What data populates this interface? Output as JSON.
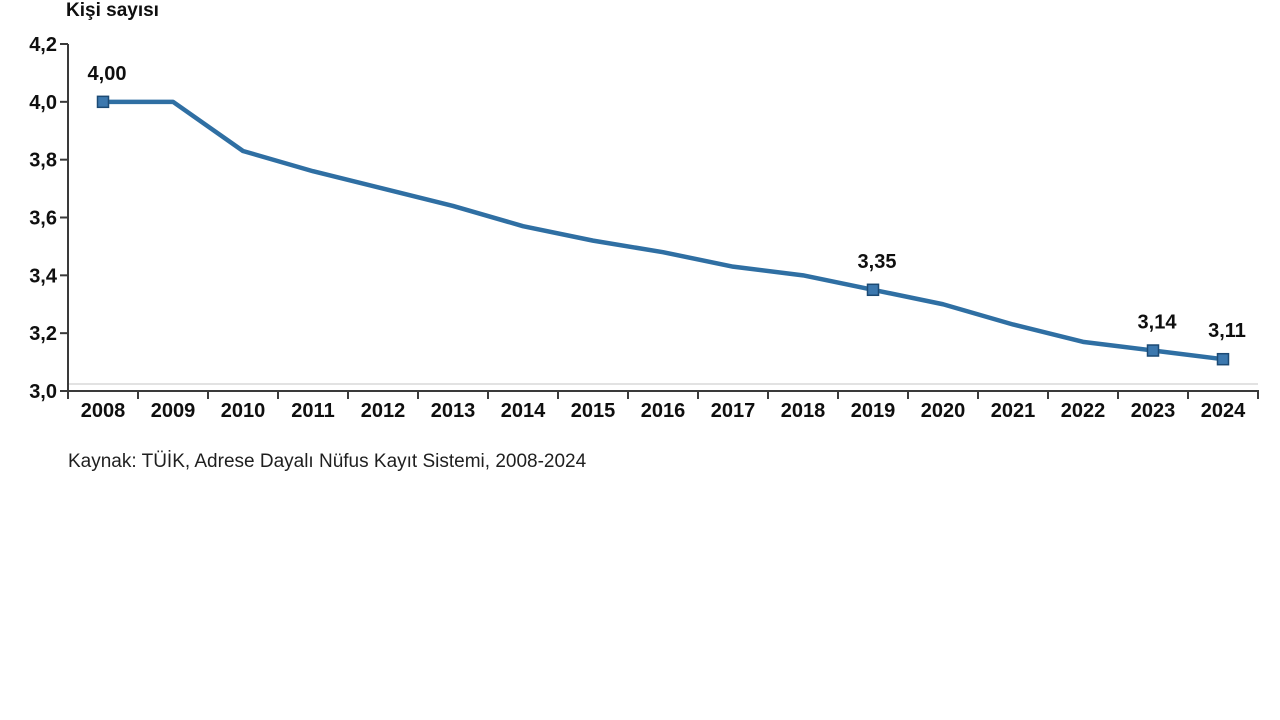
{
  "header": {
    "title": "Kişi sayısı"
  },
  "footer": {
    "source": "Kaynak: TÜİK, Adrese Dayalı Nüfus Kayıt Sistemi, 2008-2024"
  },
  "chart_data": {
    "type": "line",
    "title": "Kişi sayısı",
    "ylabel": "Kişi sayısı",
    "xlabel": "",
    "x": [
      2008,
      2009,
      2010,
      2011,
      2012,
      2013,
      2014,
      2015,
      2016,
      2017,
      2018,
      2019,
      2020,
      2021,
      2022,
      2023,
      2024
    ],
    "values": [
      4.0,
      4.0,
      3.83,
      3.76,
      3.7,
      3.64,
      3.57,
      3.52,
      3.48,
      3.43,
      3.4,
      3.35,
      3.3,
      3.23,
      3.17,
      3.14,
      3.11
    ],
    "data_labels": [
      {
        "x": 2008,
        "text": "4,00"
      },
      {
        "x": 2019,
        "text": "3,35"
      },
      {
        "x": 2023,
        "text": "3,14"
      },
      {
        "x": 2024,
        "text": "3,11"
      }
    ],
    "ylim": [
      3.0,
      4.2
    ],
    "yticks": [
      {
        "value": 3.0,
        "label": "3,0"
      },
      {
        "value": 3.2,
        "label": "3,2"
      },
      {
        "value": 3.4,
        "label": "3,4"
      },
      {
        "value": 3.6,
        "label": "3,6"
      },
      {
        "value": 3.8,
        "label": "3,8"
      },
      {
        "value": 4.0,
        "label": "4,0"
      },
      {
        "value": 4.2,
        "label": "4,2"
      }
    ],
    "grid": false,
    "legend": "none",
    "marker_style": "square markers on labeled points only",
    "colors": {
      "line": "#2F6FA3",
      "marker_fill": "#3C78AE",
      "marker_stroke": "#1C4A74",
      "axis": "#3A3A3A",
      "baseline": "#D8D8D8",
      "text": "#0f0f0f"
    }
  }
}
